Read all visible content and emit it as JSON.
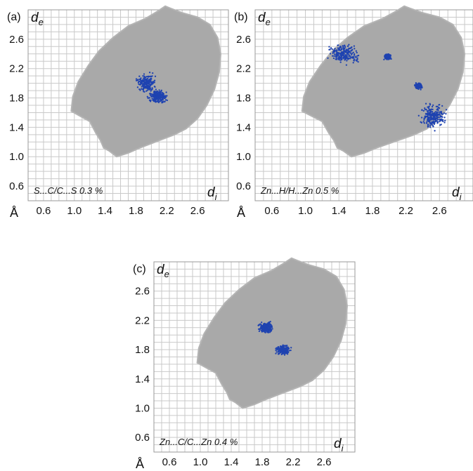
{
  "chart_data": [
    {
      "type": "scatter",
      "panel_tag": "(a)",
      "contact_label": "S...C/C...S  0.3 %",
      "y_axis": {
        "symbol": "d",
        "subscript": "e",
        "ticks": [
          "2.6",
          "2.2",
          "1.8",
          "1.4",
          "1.0",
          "0.6"
        ],
        "range": [
          0.4,
          3.0
        ]
      },
      "x_axis": {
        "symbol": "d",
        "subscript": "i",
        "unit": "Å",
        "ticks": [
          "0.6",
          "1.0",
          "1.4",
          "1.8",
          "2.2",
          "2.6"
        ],
        "range": [
          0.4,
          3.0
        ]
      },
      "grid": true,
      "colors": {
        "background_points": "#a9a9a9",
        "highlight_points": "#1f43b0"
      },
      "highlight_regions": [
        {
          "di": 1.93,
          "de": 2.0,
          "spread_di": 0.14,
          "spread_de": 0.16
        },
        {
          "di": 2.08,
          "de": 1.82,
          "spread_di": 0.16,
          "spread_de": 0.11
        }
      ]
    },
    {
      "type": "scatter",
      "panel_tag": "(b)",
      "contact_label": "Zn...H/H...Zn  0.5 %",
      "y_axis": {
        "symbol": "d",
        "subscript": "e",
        "ticks": [
          "2.6",
          "2.2",
          "1.8",
          "1.4",
          "1.0",
          "0.6"
        ],
        "range": [
          0.4,
          3.0
        ]
      },
      "x_axis": {
        "symbol": "d",
        "subscript": "i",
        "unit": "Å",
        "ticks": [
          "0.6",
          "1.0",
          "1.4",
          "1.8",
          "2.2",
          "2.6"
        ],
        "range": [
          0.4,
          3.0
        ]
      },
      "grid": true,
      "colors": {
        "background_points": "#a9a9a9",
        "highlight_points": "#1f43b0"
      },
      "highlight_regions": [
        {
          "di": 1.45,
          "de": 2.4,
          "spread_di": 0.22,
          "spread_de": 0.16
        },
        {
          "di": 1.98,
          "de": 2.36,
          "spread_di": 0.05,
          "spread_de": 0.05
        },
        {
          "di": 2.35,
          "de": 1.96,
          "spread_di": 0.05,
          "spread_de": 0.05
        },
        {
          "di": 2.52,
          "de": 1.55,
          "spread_di": 0.2,
          "spread_de": 0.22
        }
      ]
    },
    {
      "type": "scatter",
      "panel_tag": "(c)",
      "contact_label": "Zn...C/C...Zn  0.4 %",
      "y_axis": {
        "symbol": "d",
        "subscript": "e",
        "ticks": [
          "2.6",
          "2.2",
          "1.8",
          "1.4",
          "1.0",
          "0.6"
        ],
        "range": [
          0.4,
          3.0
        ]
      },
      "x_axis": {
        "symbol": "d",
        "subscript": "i",
        "unit": "Å",
        "ticks": [
          "0.6",
          "1.0",
          "1.4",
          "1.8",
          "2.2",
          "2.6"
        ],
        "range": [
          0.4,
          3.0
        ]
      },
      "grid": true,
      "colors": {
        "background_points": "#a9a9a9",
        "highlight_points": "#1f43b0"
      },
      "highlight_regions": [
        {
          "di": 1.85,
          "de": 2.1,
          "spread_di": 0.12,
          "spread_de": 0.1
        },
        {
          "di": 2.07,
          "de": 1.8,
          "spread_di": 0.11,
          "spread_de": 0.08
        }
      ]
    }
  ]
}
